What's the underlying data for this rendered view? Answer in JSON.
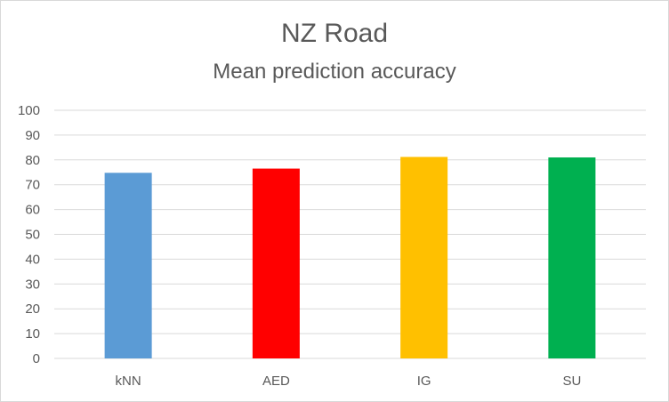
{
  "chart_data": {
    "type": "bar",
    "title": "NZ Road",
    "subtitle": "Mean prediction accuracy",
    "categories": [
      "kNN",
      "AED",
      "IG",
      "SU"
    ],
    "values": [
      74.8,
      76.5,
      81.2,
      81.0
    ],
    "colors": [
      "#5b9bd5",
      "#ff0000",
      "#ffc000",
      "#00b050"
    ],
    "ylim": [
      0,
      100
    ],
    "yticks": [
      0,
      10,
      20,
      30,
      40,
      50,
      60,
      70,
      80,
      90,
      100
    ],
    "grid": true,
    "legend": "none"
  }
}
